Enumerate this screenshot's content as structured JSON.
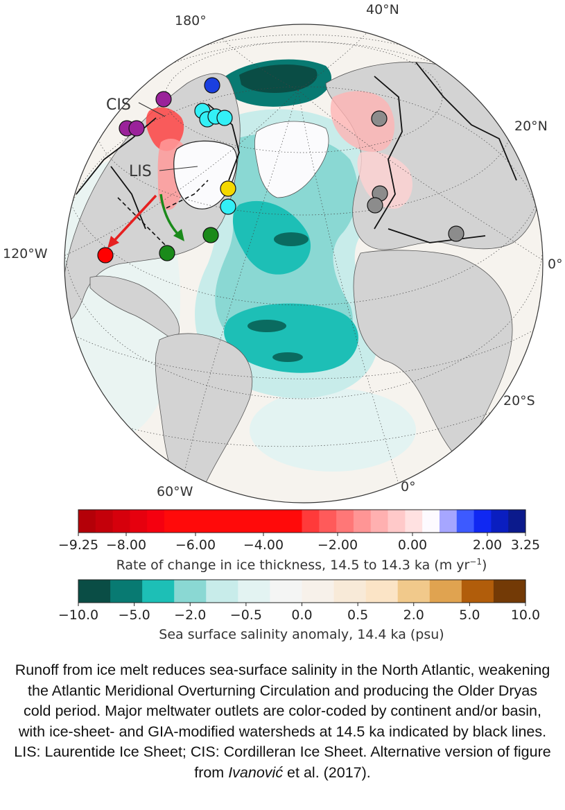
{
  "map": {
    "lon_labels": {
      "west120": "120°W",
      "west60": "60°W",
      "lon0_bottom": "0°",
      "lon0_right": "0°",
      "lon180": "180°"
    },
    "lat_labels": {
      "n40": "40°N",
      "n20": "20°N",
      "s20": "20°S"
    },
    "ice_sheet_labels": {
      "cis": "CIS",
      "lis": "LIS"
    },
    "colors": {
      "ocean_bg": "#f6f3ee",
      "land": "#d3d3d3",
      "ice": "#fbfbfd",
      "outlet_red": "#ff0000",
      "outlet_green": "#1a8a1a",
      "outlet_cyan": "#33f0f6",
      "outlet_yellow": "#f5d800",
      "outlet_gray": "#8c8c8c",
      "outlet_purple": "#9a229a",
      "outlet_blue": "#1a3fe0"
    }
  },
  "colorbar_ice": {
    "title_pre": "Rate of change in ice thickness, 14.5 to 14.3 ka (m yr",
    "title_sup": "−1",
    "title_post": ")",
    "ticks": [
      "−9.25",
      "−8.00",
      "−6.00",
      "−4.00",
      "−2.00",
      "0.00",
      "2.00",
      "3.25"
    ],
    "colors": [
      "#b40008",
      "#c4000a",
      "#d6000c",
      "#e6000e",
      "#f5000f",
      "#ff0a0a",
      "#ff0a0a",
      "#ff0a0a",
      "#ff0a0a",
      "#ff0a0a",
      "#ff0a0a",
      "#ff0a0a",
      "#ff0a0a",
      "#ff3a3a",
      "#ff5a5a",
      "#ff7777",
      "#ff9595",
      "#ffb0b0",
      "#ffc9c9",
      "#ffe1e1",
      "#fdfaff",
      "#a6a6ff",
      "#3d5aff",
      "#1028f2",
      "#0a1ec0",
      "#0b1a8c"
    ]
  },
  "colorbar_salinity": {
    "title": "Sea surface salinity anomaly, 14.4 ka (psu)",
    "ticks": [
      "−10.0",
      "−5.0",
      "−2.0",
      "−0.5",
      "0.0",
      "0.5",
      "2.0",
      "5.0",
      "10.0"
    ],
    "colors": [
      "#0a4d45",
      "#087a72",
      "#1dbfb6",
      "#8ad8d3",
      "#c8ecea",
      "#e3f3f2",
      "#f4f5f4",
      "#f7f1ea",
      "#f8ead8",
      "#fbe4c6",
      "#f1c98b",
      "#e0a350",
      "#b15d0b",
      "#733a06"
    ]
  },
  "caption": {
    "text": "Runoff from ice melt reduces sea-surface salinity in the North Atlantic, weakening the Atlantic Meridional Overturning Circulation and producing the Older Dryas cold period. Major meltwater outlets are color-coded by continent and/or basin, with ice-sheet- and GIA-modified watersheds at 14.5 ka indicated by black lines. LIS: Laurentide Ice Sheet; CIS: Cordilleran Ice Sheet. Alternative version of figure from ",
    "citation_author": "Ivanović",
    "citation_rest": " et al. (2017)."
  }
}
